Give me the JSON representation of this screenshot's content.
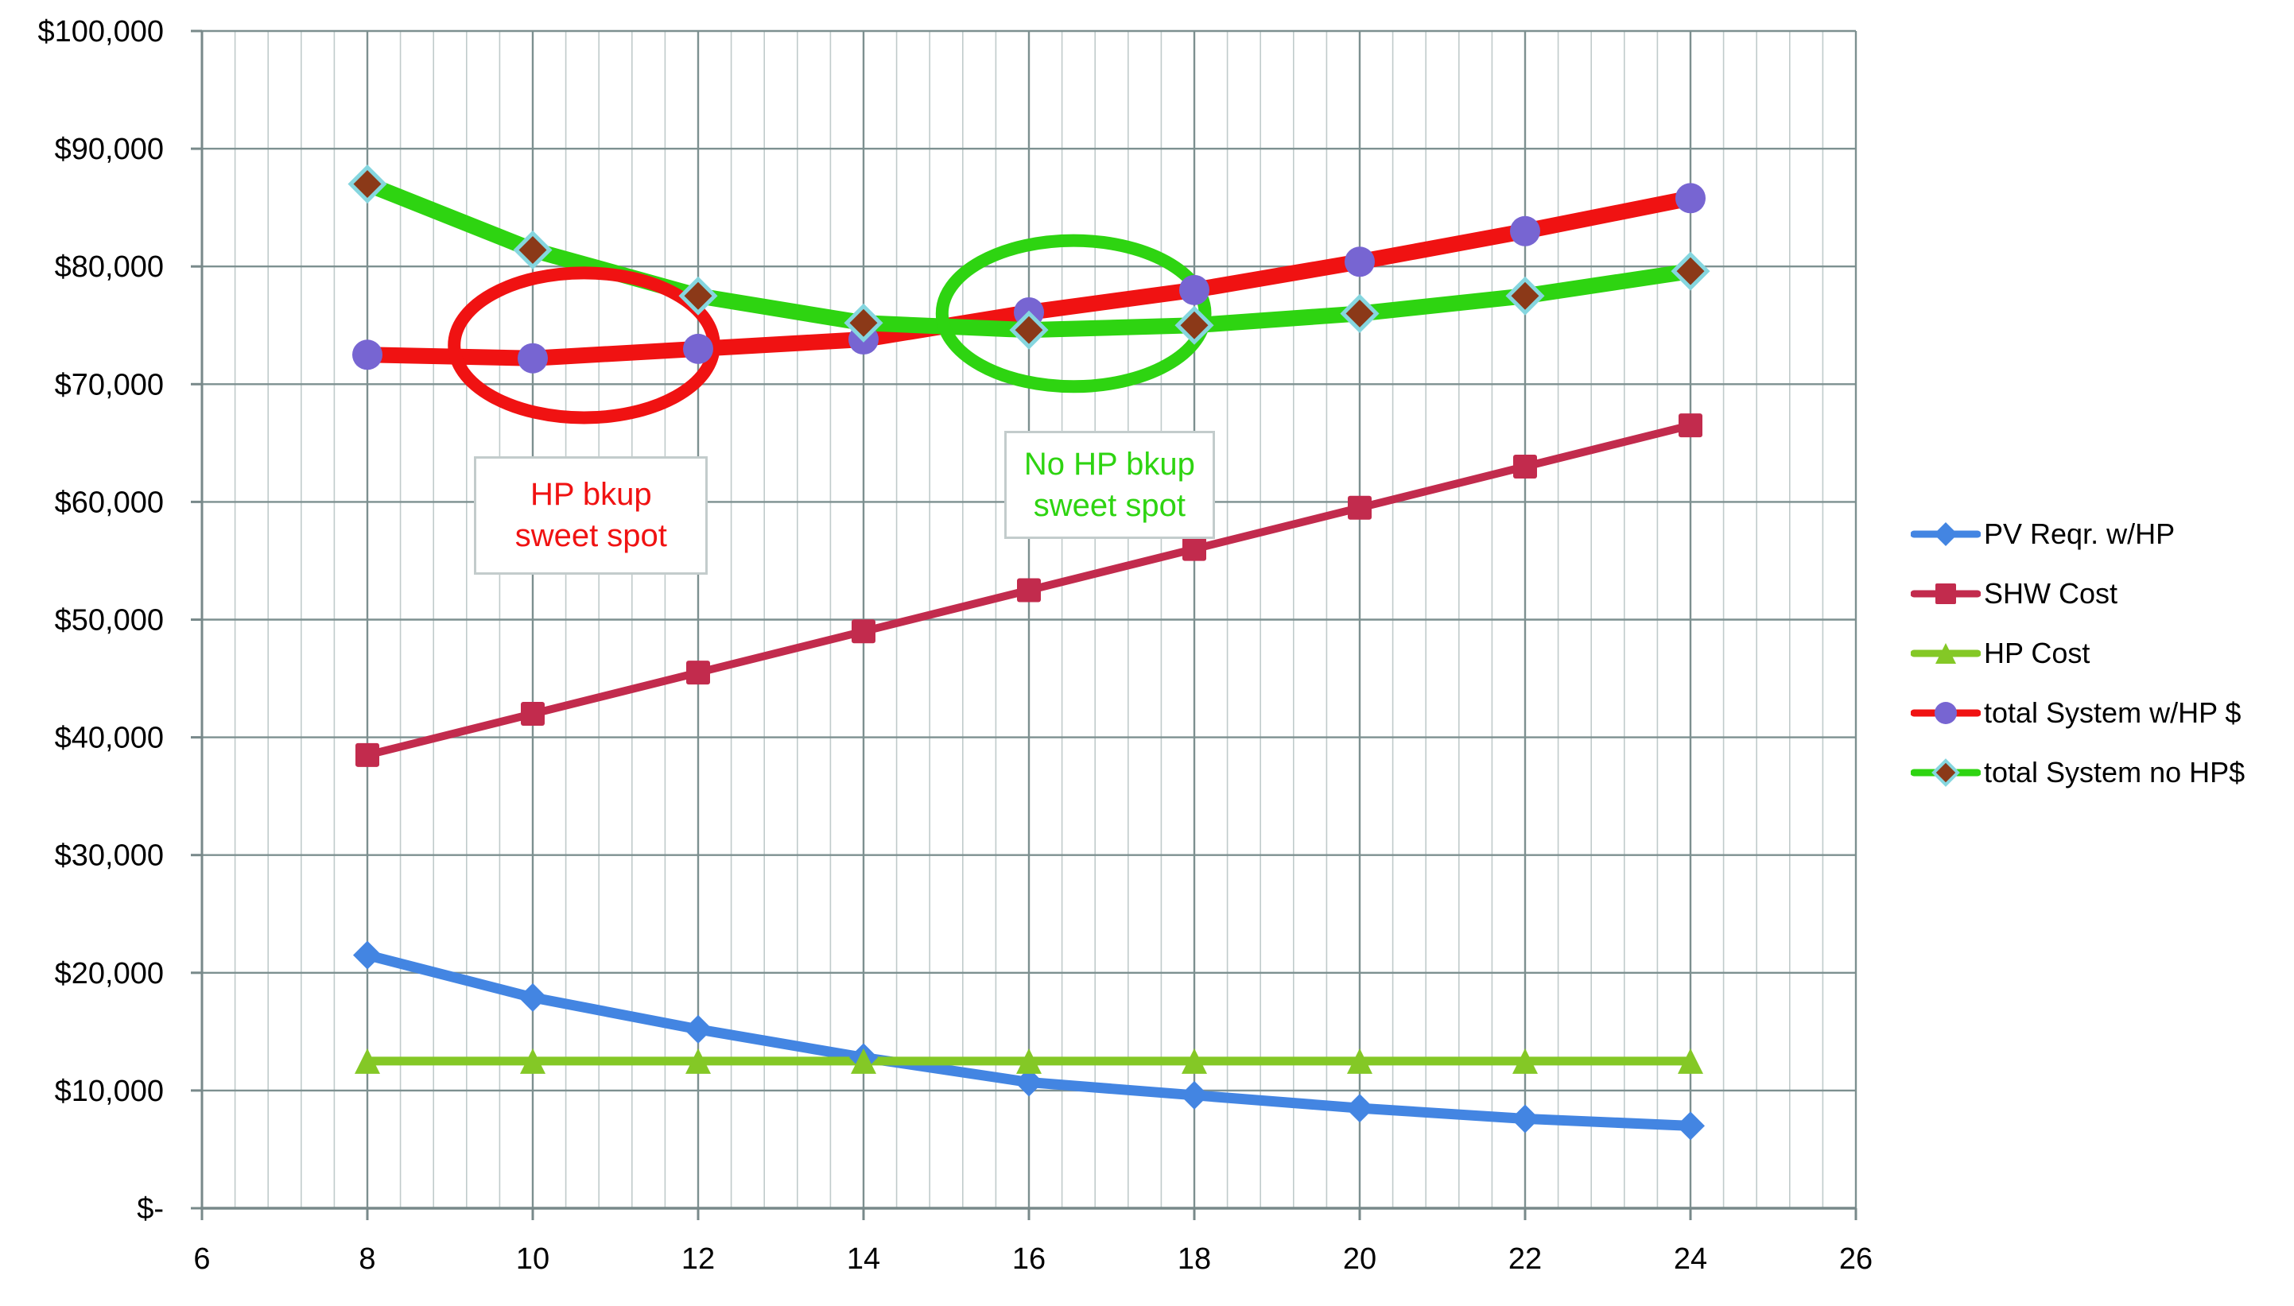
{
  "chart_data": {
    "type": "line",
    "title": "",
    "xlabel": "",
    "ylabel": "",
    "xlim": [
      6,
      26
    ],
    "ylim": [
      0,
      100000
    ],
    "grid": "major-horizontal, major+minor-vertical (minor every 0.4)",
    "legend_position": "right",
    "x_axis": {
      "tick_labels": [
        "6",
        "8",
        "10",
        "12",
        "14",
        "16",
        "18",
        "20",
        "22",
        "24",
        "26"
      ]
    },
    "y_axis": {
      "tick_labels": [
        "$-",
        "$10,000",
        "$20,000",
        "$30,000",
        "$40,000",
        "$50,000",
        "$60,000",
        "$70,000",
        "$80,000",
        "$90,000",
        "$100,000"
      ],
      "tick_values": [
        0,
        10000,
        20000,
        30000,
        40000,
        50000,
        60000,
        70000,
        80000,
        90000,
        100000
      ]
    },
    "categories": [
      8,
      10,
      12,
      14,
      16,
      18,
      20,
      22,
      24
    ],
    "series": [
      {
        "name": "PV Reqr. w/HP",
        "color": "#4385E2",
        "line_width": 13,
        "marker": "diamond",
        "marker_color": "#4385E2",
        "marker_size": 16,
        "values": [
          21500,
          17900,
          15200,
          12800,
          10700,
          9600,
          8500,
          7600,
          7000
        ]
      },
      {
        "name": "SHW Cost",
        "color": "#C22B4D",
        "line_width": 10,
        "marker": "square",
        "marker_color": "#C22B4D",
        "marker_size": 15,
        "values": [
          38500,
          42000,
          45500,
          49000,
          52500,
          56000,
          59500,
          63000,
          66500
        ]
      },
      {
        "name": "HP Cost",
        "color": "#84C826",
        "line_width": 11,
        "marker": "triangle",
        "marker_color": "#84C826",
        "marker_size": 16,
        "values": [
          12500,
          12500,
          12500,
          12500,
          12500,
          12500,
          12500,
          12500,
          12500
        ]
      },
      {
        "name": "total System w/HP $",
        "color": "#F01212",
        "line_width": 20,
        "marker": "circle",
        "marker_color": "#7765D2",
        "marker_size": 19,
        "values": [
          72500,
          72200,
          73000,
          73800,
          76100,
          78000,
          80400,
          83000,
          85800
        ]
      },
      {
        "name": "total System no HP$",
        "color": "#2ED411",
        "line_width": 20,
        "marker": "diamond",
        "marker_color": "#8B3918",
        "marker_stroke": "#85D6DF",
        "marker_stroke_width": 5,
        "marker_size": 19,
        "values": [
          87000,
          81400,
          77500,
          75200,
          74600,
          75000,
          76000,
          77500,
          79600
        ]
      }
    ],
    "annotations": {
      "ellipses": [
        {
          "name": "hp-backup-sweet-spot-ellipse",
          "color": "#F01212",
          "cx": 10.62,
          "cy": 73300,
          "rx": 1.57,
          "ry": 6150,
          "stroke_width": 16
        },
        {
          "name": "no-hp-backup-sweet-spot-ellipse",
          "color": "#2ED411",
          "cx": 16.54,
          "cy": 76000,
          "rx": 1.59,
          "ry": 6200,
          "stroke_width": 16
        }
      ],
      "hp_box": {
        "line1": "HP bkup",
        "line2": "sweet spot",
        "color": "#F01212",
        "x1": 9.29,
        "x2": 12.12,
        "y1": 53820,
        "y2": 63880
      },
      "no_hp_box": {
        "line1": "No HP bkup",
        "line2": "sweet spot",
        "color": "#2ED411",
        "x1": 15.7,
        "x2": 18.25,
        "y1": 56860,
        "y2": 66040
      }
    },
    "colors": {
      "major_gridline": "#7D9090",
      "minor_gridline": "#C0CBCB",
      "axis_line": "#78898A",
      "background": "#FFFFFF",
      "tick_label": "#000000"
    }
  }
}
